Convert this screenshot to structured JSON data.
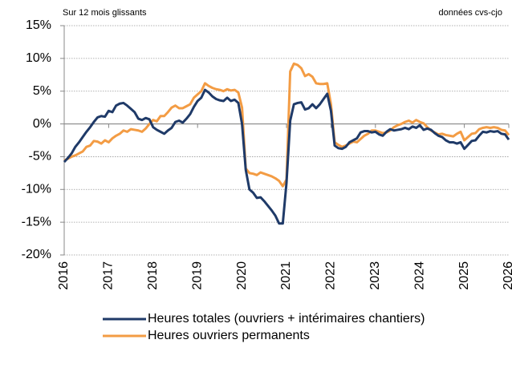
{
  "chart_data": {
    "type": "line",
    "subtitle_left": "Sur 12 mois glissants",
    "subtitle_right": "données cvs-cjo",
    "categories": [
      "2016",
      null,
      null,
      null,
      null,
      null,
      null,
      null,
      null,
      null,
      null,
      null,
      "2017",
      null,
      null,
      null,
      null,
      null,
      null,
      null,
      null,
      null,
      null,
      null,
      "2018",
      null,
      null,
      null,
      null,
      null,
      null,
      null,
      null,
      null,
      null,
      null,
      "2019",
      null,
      null,
      null,
      null,
      null,
      null,
      null,
      null,
      null,
      null,
      null,
      "2020",
      null,
      null,
      null,
      null,
      null,
      null,
      null,
      null,
      null,
      null,
      null,
      "2021",
      null,
      null,
      null,
      null,
      null,
      null,
      null,
      null,
      null,
      null,
      null,
      "2022",
      null,
      null,
      null,
      null,
      null,
      null,
      null,
      null,
      null,
      null,
      null,
      "2023",
      null,
      null,
      null,
      null,
      null,
      null,
      null,
      null,
      null,
      null,
      null,
      "2024",
      null,
      null,
      null,
      null,
      null,
      null,
      null,
      null,
      null,
      null,
      null,
      "2025",
      null,
      null,
      null,
      null,
      null,
      null,
      null,
      null,
      null,
      null,
      null,
      "2026"
    ],
    "series": [
      {
        "name": "Heures totales (ouvriers + intérimaires chantiers)",
        "color": "#1f3a68",
        "values": [
          -5.8,
          -5.2,
          -4.5,
          -3.5,
          -2.8,
          -2,
          -1.2,
          -0.5,
          0.3,
          1,
          1.2,
          1.1,
          2,
          1.8,
          2.8,
          3.1,
          3.2,
          2.8,
          2.3,
          1.8,
          0.8,
          0.6,
          0.9,
          0.7,
          -0.5,
          -0.9,
          -1.2,
          -1.5,
          -1,
          -0.6,
          0.3,
          0.5,
          0.2,
          0.8,
          1.5,
          2.6,
          3.5,
          4,
          5.2,
          4.8,
          4.2,
          3.8,
          3.6,
          3.5,
          4,
          3.5,
          3.7,
          3.2,
          0,
          -7,
          -10,
          -10.5,
          -11.3,
          -11.2,
          -11.8,
          -12.5,
          -13.2,
          -14,
          -15.2,
          -15.2,
          -9,
          0.5,
          3,
          3.2,
          3.3,
          2.2,
          2.4,
          3,
          2.4,
          3,
          3.8,
          4.6,
          2,
          -3.3,
          -3.7,
          -3.8,
          -3.5,
          -2.8,
          -2.5,
          -2.2,
          -1.3,
          -1.1,
          -1.1,
          -1.3,
          -1.2,
          -1.6,
          -1.8,
          -1.2,
          -0.8,
          -1,
          -0.9,
          -0.8,
          -0.6,
          -0.8,
          -0.4,
          -0.6,
          -0.2,
          -0.9,
          -0.7,
          -0.9,
          -1.4,
          -1.8,
          -2,
          -2.5,
          -2.8,
          -2.8,
          -3,
          -2.8,
          -3.8,
          -3.2,
          -2.6,
          -2.5,
          -1.8,
          -1.2,
          -1.3,
          -1.1,
          -1.2,
          -1.1,
          -1.5,
          -1.6,
          -2.4
        ]
      },
      {
        "name": "Heures ouvriers permanents",
        "color": "#f39c44",
        "values": [
          -5.6,
          -5.3,
          -5,
          -4.8,
          -4.5,
          -4.2,
          -3.5,
          -3.3,
          -2.6,
          -2.7,
          -3,
          -2.5,
          -2.8,
          -2.2,
          -1.8,
          -1.5,
          -1,
          -1.2,
          -0.8,
          -0.9,
          -1,
          -1.2,
          -0.7,
          0,
          0.6,
          0.4,
          1.2,
          1.2,
          1.8,
          2.5,
          2.8,
          2.4,
          2.4,
          2.7,
          3,
          4,
          4.5,
          5,
          6.2,
          5.8,
          5.5,
          5.3,
          5.2,
          5,
          5.3,
          5.1,
          5.2,
          4.8,
          2.5,
          -6.8,
          -7.5,
          -7.6,
          -7.8,
          -7.4,
          -7.6,
          -7.8,
          -8,
          -8.3,
          -8.7,
          -9.5,
          -8.5,
          8,
          9.2,
          9,
          8.5,
          7.3,
          7.6,
          7.2,
          6.2,
          6.1,
          6.1,
          6.2,
          3,
          -2.8,
          -3.2,
          -3.5,
          -3.3,
          -3,
          -2.7,
          -2.8,
          -2.3,
          -1.8,
          -1.5,
          -1,
          -1,
          -1.2,
          -1.4,
          -1.3,
          -1,
          -0.5,
          -0.2,
          0,
          0.3,
          0.5,
          0.2,
          0.6,
          0.3,
          0.1,
          -0.5,
          -1,
          -1.3,
          -1.6,
          -1.5,
          -1.7,
          -1.8,
          -1.9,
          -1.5,
          -1.2,
          -2.5,
          -2,
          -1.5,
          -1.4,
          -0.8,
          -0.6,
          -0.5,
          -0.6,
          -0.5,
          -0.6,
          -0.9,
          -1,
          -1.7
        ]
      }
    ],
    "ylim": [
      -20,
      15
    ],
    "yticks": [
      {
        "value": -20,
        "label": "-20%"
      },
      {
        "value": -15,
        "label": "-15%"
      },
      {
        "value": -10,
        "label": "-10%"
      },
      {
        "value": -5,
        "label": "-5%"
      },
      {
        "value": 0,
        "label": "0%"
      },
      {
        "value": 5,
        "label": "5%"
      },
      {
        "value": 10,
        "label": "10%"
      },
      {
        "value": 15,
        "label": "15%"
      }
    ],
    "grid": true
  }
}
